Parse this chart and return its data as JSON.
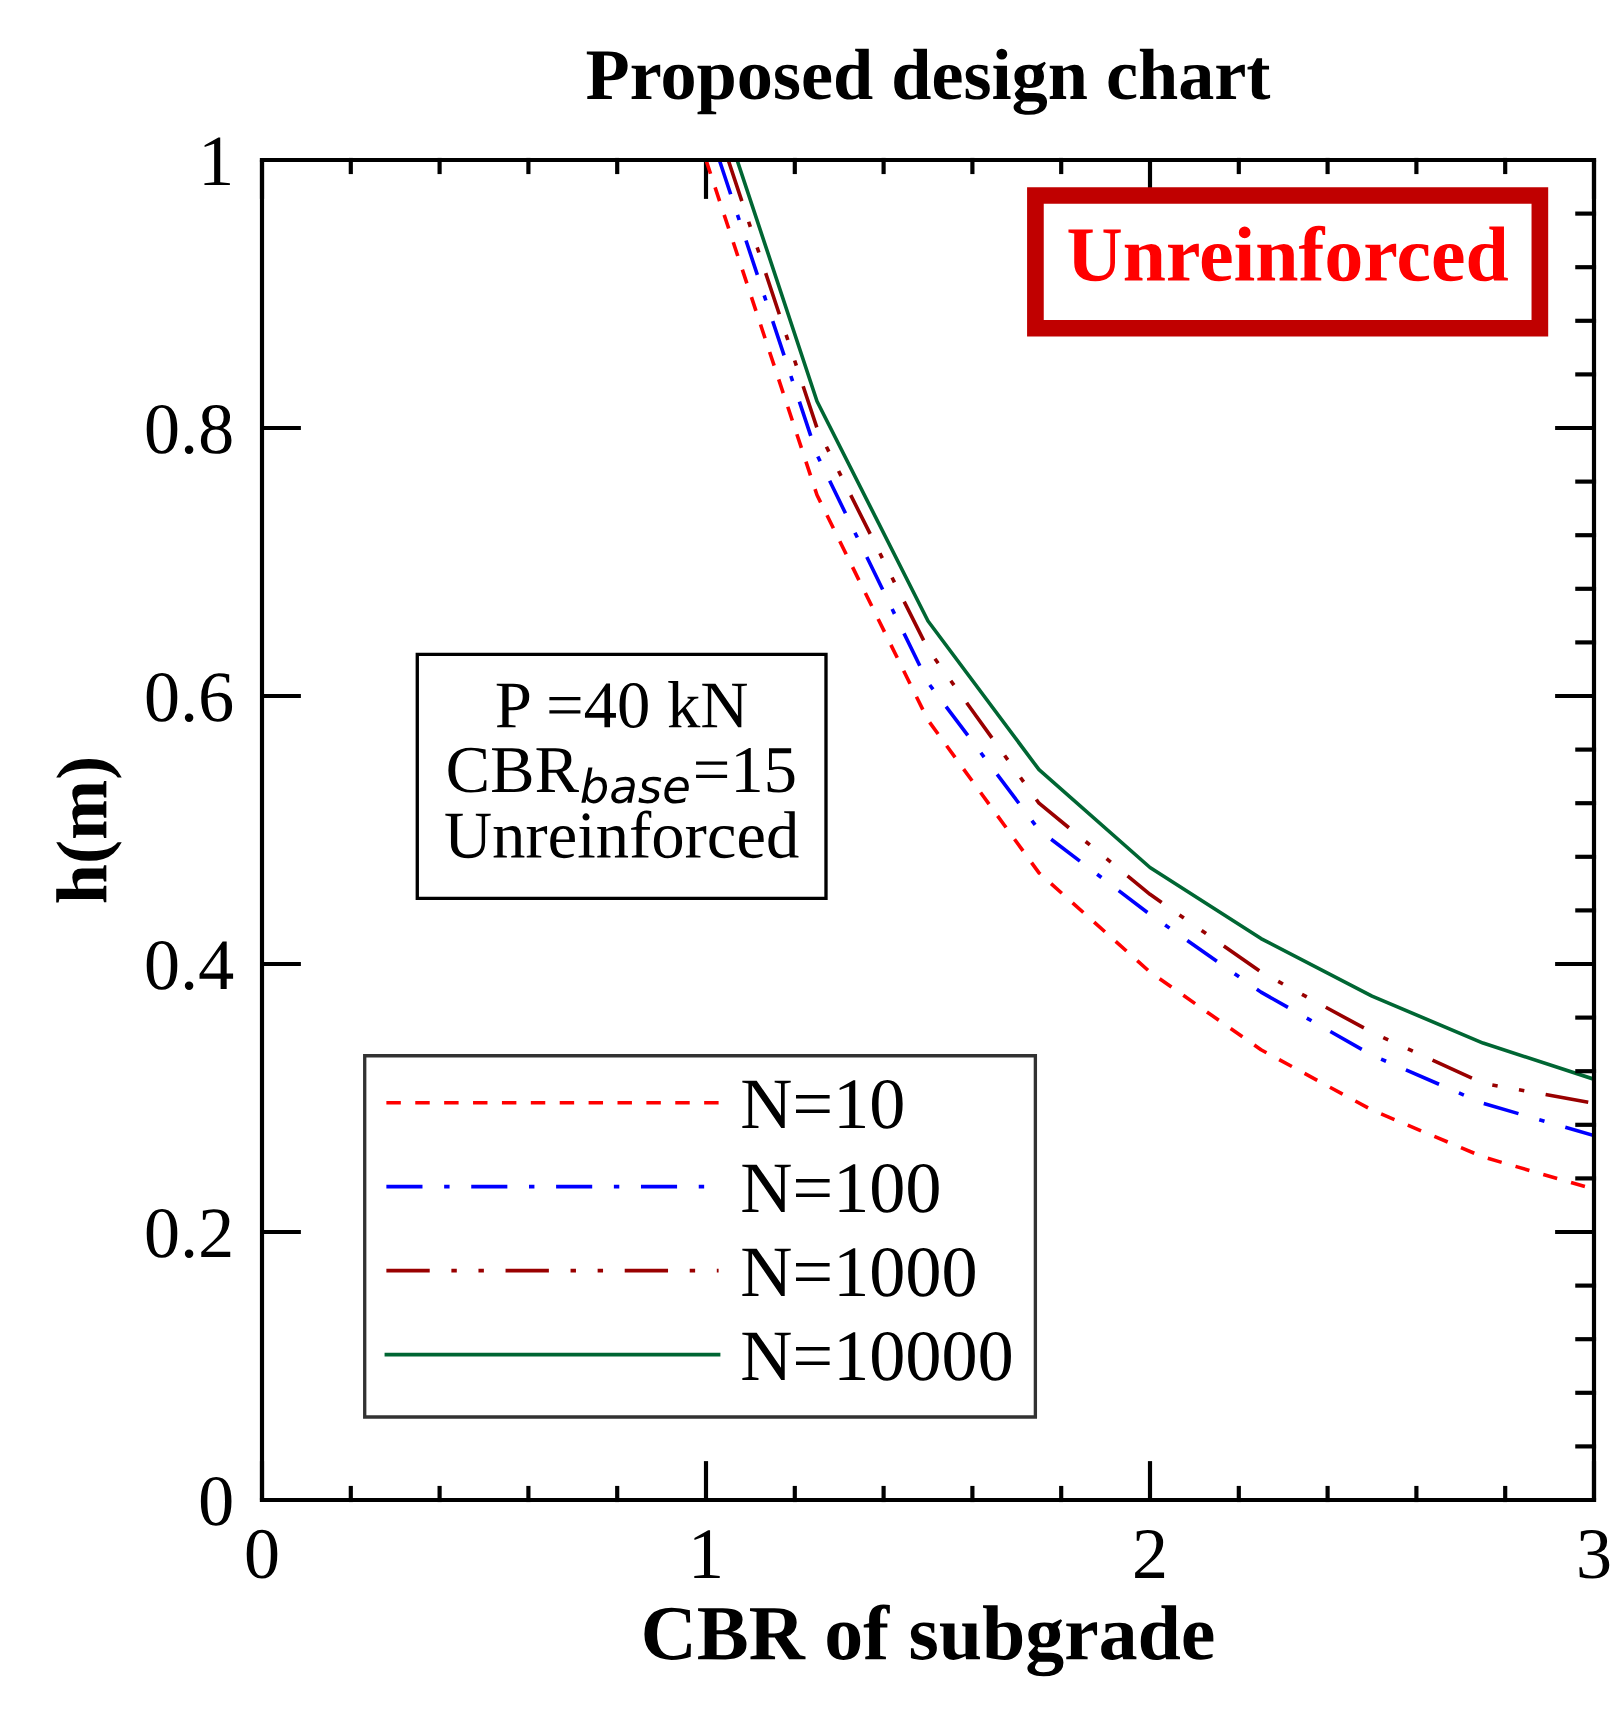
{
  "chart_data": {
    "type": "line",
    "title": "Proposed design chart",
    "xlabel": "CBR of subgrade",
    "ylabel": "h(m)",
    "xlim": [
      0,
      3
    ],
    "xticks": [
      0,
      1,
      2,
      3
    ],
    "ylim": [
      0,
      1
    ],
    "yticks": [
      0,
      0.2,
      0.4,
      0.6,
      0.8,
      1
    ],
    "grid": false,
    "legend": "bottom left",
    "marker": "none",
    "annotations": [
      "Unreinforced",
      "P =40 kN\nCBR$_{base}$=15\nUnreinforced"
    ],
    "series": [
      {
        "name": "N=10",
        "color": "#ff0000",
        "line_style": "dashed",
        "x": [
          1.0,
          1.25,
          1.5,
          1.75,
          2.0,
          2.25,
          2.5,
          2.75,
          3.0
        ],
        "values": [
          1.0,
          0.75,
          0.582,
          0.468,
          0.394,
          0.336,
          0.291,
          0.256,
          0.232
        ]
      },
      {
        "name": "N=100",
        "color": "#0000ff",
        "line_style": "dashdot",
        "x": [
          1.03,
          1.25,
          1.5,
          1.75,
          2.0,
          2.25,
          2.5,
          2.75,
          3.0
        ],
        "values": [
          1.0,
          0.78,
          0.61,
          0.5,
          0.437,
          0.379,
          0.332,
          0.296,
          0.272
        ]
      },
      {
        "name": "N=1000",
        "color": "#990000",
        "line_style": "dashdotdot",
        "x": [
          1.05,
          1.25,
          1.5,
          1.75,
          2.0,
          2.25,
          2.5,
          2.75,
          3.0
        ],
        "values": [
          1.0,
          0.8,
          0.635,
          0.52,
          0.452,
          0.394,
          0.349,
          0.311,
          0.296
        ]
      },
      {
        "name": "N=10000",
        "color": "#006633",
        "line_style": "solid",
        "x": [
          1.07,
          1.25,
          1.5,
          1.75,
          2.0,
          2.25,
          2.5,
          2.75,
          3.0
        ],
        "values": [
          1.0,
          0.82,
          0.656,
          0.545,
          0.472,
          0.419,
          0.376,
          0.341,
          0.314
        ]
      }
    ]
  }
}
